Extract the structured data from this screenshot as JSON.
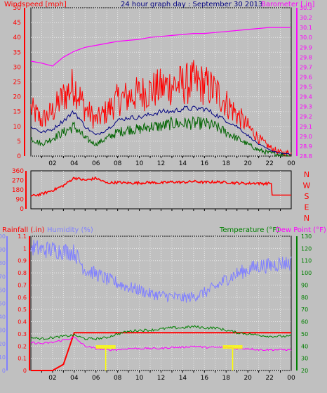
{
  "header": {
    "wind_label": "Windspeed [mph]",
    "title": "24 hour graph day : September 30 2013",
    "baro_label": "Barometer [.in]"
  },
  "labels": {
    "rainfall": "Rainfall (.in)",
    "humidity": "Humidity (%)",
    "temperature": "Temperature (°F)",
    "dewpoint": "Dew Point (°F)"
  },
  "colors": {
    "background": "#c0c0c0",
    "wind_gust": "#ff0000",
    "wind_avg": "#006400",
    "wind_mid": "#000080",
    "barometer": "#ff00ff",
    "direction": "#ff0000",
    "rain": "#ff0000",
    "humidity": "#8080ff",
    "temperature": "#008000",
    "dewpoint": "#ff00ff",
    "marker": "#ffff00"
  },
  "time_ticks": [
    "02",
    "04",
    "06",
    "08",
    "10",
    "12",
    "14",
    "16",
    "18",
    "20",
    "22",
    "00"
  ],
  "chart_data": [
    {
      "type": "line",
      "title": "24 hour graph day : September 30 2013",
      "xlabel": "",
      "x": [
        "00",
        "01",
        "02",
        "03",
        "04",
        "05",
        "06",
        "07",
        "08",
        "09",
        "10",
        "11",
        "12",
        "13",
        "14",
        "15",
        "16",
        "17",
        "18",
        "19",
        "20",
        "21",
        "22",
        "23",
        "24"
      ],
      "series": [
        {
          "name": "Windspeed [mph]",
          "axis": "left",
          "ylim": [
            0,
            50
          ],
          "yticks": [
            0,
            5,
            10,
            15,
            20,
            25,
            30,
            35,
            40,
            45,
            50
          ],
          "values": [
            16,
            12,
            15,
            20,
            24,
            16,
            12,
            15,
            19,
            20,
            21,
            22,
            23,
            24,
            24,
            25,
            24,
            22,
            18,
            14,
            10,
            6,
            3,
            1,
            1
          ]
        },
        {
          "values": [
            10,
            8,
            9,
            12,
            15,
            10,
            7,
            9,
            12,
            13,
            13,
            14,
            15,
            15,
            16,
            16,
            16,
            14,
            12,
            10,
            7,
            4,
            2,
            1,
            0.5
          ]
        },
        {
          "values": [
            6,
            4,
            6,
            8,
            10,
            6,
            4,
            6,
            8,
            9,
            9,
            10,
            10,
            11,
            11,
            11,
            11,
            10,
            8,
            6,
            4,
            2,
            1,
            0.5,
            0
          ]
        },
        {
          "name": "Barometer [.in]",
          "axis": "right",
          "ylim": [
            28.8,
            30.3
          ],
          "yticks": [
            28.8,
            28.9,
            29.0,
            29.1,
            29.2,
            29.3,
            29.4,
            29.5,
            29.6,
            29.7,
            29.8,
            29.9,
            30.0,
            30.1,
            30.2,
            30.3
          ],
          "values": [
            29.76,
            29.74,
            29.71,
            29.8,
            29.86,
            29.9,
            29.92,
            29.94,
            29.96,
            29.97,
            29.98,
            30.0,
            30.01,
            30.02,
            30.03,
            30.04,
            30.04,
            30.05,
            30.06,
            30.07,
            30.08,
            30.09,
            30.1,
            30.1,
            30.1
          ]
        }
      ]
    },
    {
      "type": "line",
      "title": "",
      "x": [
        "00",
        "01",
        "02",
        "03",
        "04",
        "05",
        "06",
        "07",
        "08",
        "09",
        "10",
        "11",
        "12",
        "13",
        "14",
        "15",
        "16",
        "17",
        "18",
        "19",
        "20",
        "21",
        "22",
        "23",
        "24"
      ],
      "series": [
        {
          "values": [
            120,
            140,
            175,
            220,
            295,
            270,
            290,
            245,
            250,
            245,
            245,
            250,
            245,
            255,
            250,
            260,
            250,
            255,
            250,
            245,
            240,
            245,
            130,
            130,
            130
          ]
        }
      ],
      "ylim": [
        0,
        360
      ],
      "yticks": [
        0,
        90,
        180,
        270,
        360
      ],
      "right_labels": [
        "N",
        "W",
        "S",
        "E",
        "N"
      ]
    },
    {
      "type": "line",
      "title": "",
      "x": [
        "00",
        "01",
        "02",
        "03",
        "04",
        "05",
        "06",
        "07",
        "08",
        "09",
        "10",
        "11",
        "12",
        "13",
        "14",
        "15",
        "16",
        "17",
        "18",
        "19",
        "20",
        "21",
        "22",
        "23",
        "24"
      ],
      "series": [
        {
          "name": "Rainfall (.in)",
          "axis": "rain",
          "ylim": [
            0,
            1.1
          ],
          "yticks": [
            0,
            0.1,
            0.2,
            0.3,
            0.4,
            0.5,
            0.6,
            0.7,
            0.8,
            0.9,
            1,
            1.1
          ],
          "values": [
            0,
            0,
            0,
            0.05,
            0.31,
            0.31,
            0.31,
            0.31,
            0.31,
            0.31,
            0.31,
            0.31,
            0.31,
            0.31,
            0.31,
            0.31,
            0.31,
            0.31,
            0.31,
            0.31,
            0.31,
            0.31,
            0.31,
            0.31,
            0.31
          ]
        },
        {
          "name": "Humidity (%)",
          "axis": "humidity",
          "ylim": [
            0,
            100
          ],
          "yticks": [
            0,
            10,
            20,
            30,
            40,
            50,
            60,
            70,
            80,
            90,
            100
          ],
          "values": [
            92,
            90,
            90,
            89,
            88,
            75,
            72,
            68,
            65,
            62,
            60,
            57,
            56,
            55,
            54,
            55,
            58,
            62,
            68,
            72,
            75,
            78,
            78,
            80,
            80
          ]
        },
        {
          "name": "Temperature (°F)",
          "axis": "right",
          "ylim": [
            20,
            130
          ],
          "yticks": [
            20,
            30,
            40,
            50,
            60,
            70,
            80,
            90,
            100,
            110,
            120,
            130
          ],
          "values": [
            47,
            46,
            47,
            48,
            49,
            46,
            46,
            47,
            50,
            52,
            53,
            53,
            54,
            55,
            55,
            56,
            55,
            55,
            53,
            51,
            50,
            49,
            48,
            48,
            48
          ]
        },
        {
          "name": "Dew Point (°F)",
          "axis": "right",
          "ylim": [
            20,
            130
          ],
          "values": [
            43,
            42,
            43,
            45,
            47,
            40,
            38,
            37,
            37,
            38,
            38,
            38,
            38,
            39,
            39,
            40,
            39,
            39,
            39,
            38,
            38,
            37,
            37,
            37,
            37
          ]
        }
      ]
    }
  ]
}
